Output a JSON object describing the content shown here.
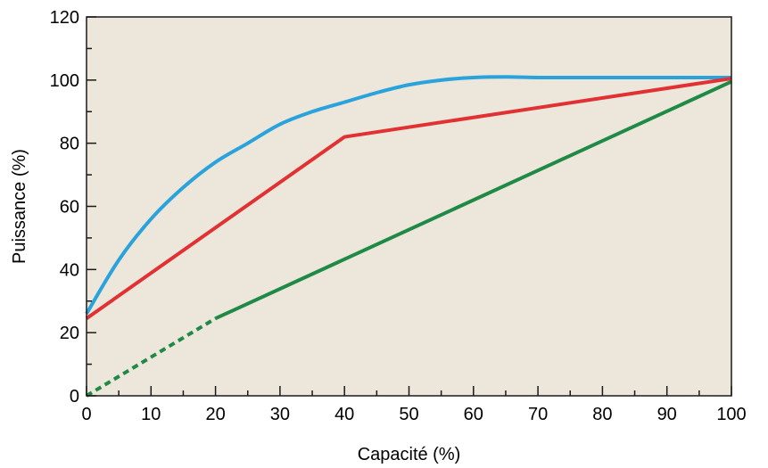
{
  "chart_data": {
    "type": "line",
    "xlabel": "Capacité (%)",
    "ylabel": "Puissance (%)",
    "xlim": [
      0,
      100
    ],
    "ylim": [
      0,
      120
    ],
    "x_ticks": [
      0,
      10,
      20,
      30,
      40,
      50,
      60,
      70,
      80,
      90,
      100
    ],
    "y_ticks": [
      0,
      20,
      40,
      60,
      80,
      100,
      120
    ],
    "x_minor_step": 5,
    "y_minor_step": 10,
    "grid": false,
    "legend": "none",
    "plot_background": "#ece6db",
    "series": [
      {
        "color": "#2aa2dc",
        "style": "solid",
        "x": [
          0,
          5,
          10,
          15,
          20,
          25,
          30,
          35,
          40,
          45,
          50,
          55,
          60,
          65,
          70,
          75,
          80,
          85,
          90,
          95,
          100
        ],
        "y": [
          26,
          43,
          56,
          66,
          74,
          80,
          86,
          90,
          93,
          96,
          98.5,
          100,
          100.8,
          101,
          100.8,
          100.8,
          100.8,
          100.8,
          100.8,
          100.8,
          100.8
        ]
      },
      {
        "color": "#e23133",
        "style": "solid",
        "x": [
          0,
          40,
          100
        ],
        "y": [
          24.5,
          82,
          100.5
        ]
      },
      {
        "color": "#1f8a45",
        "style": "dashed",
        "x": [
          0,
          20
        ],
        "y": [
          0,
          24.5
        ]
      },
      {
        "color": "#1f8a45",
        "style": "solid",
        "x": [
          20,
          100
        ],
        "y": [
          24.5,
          99.5
        ]
      }
    ]
  }
}
